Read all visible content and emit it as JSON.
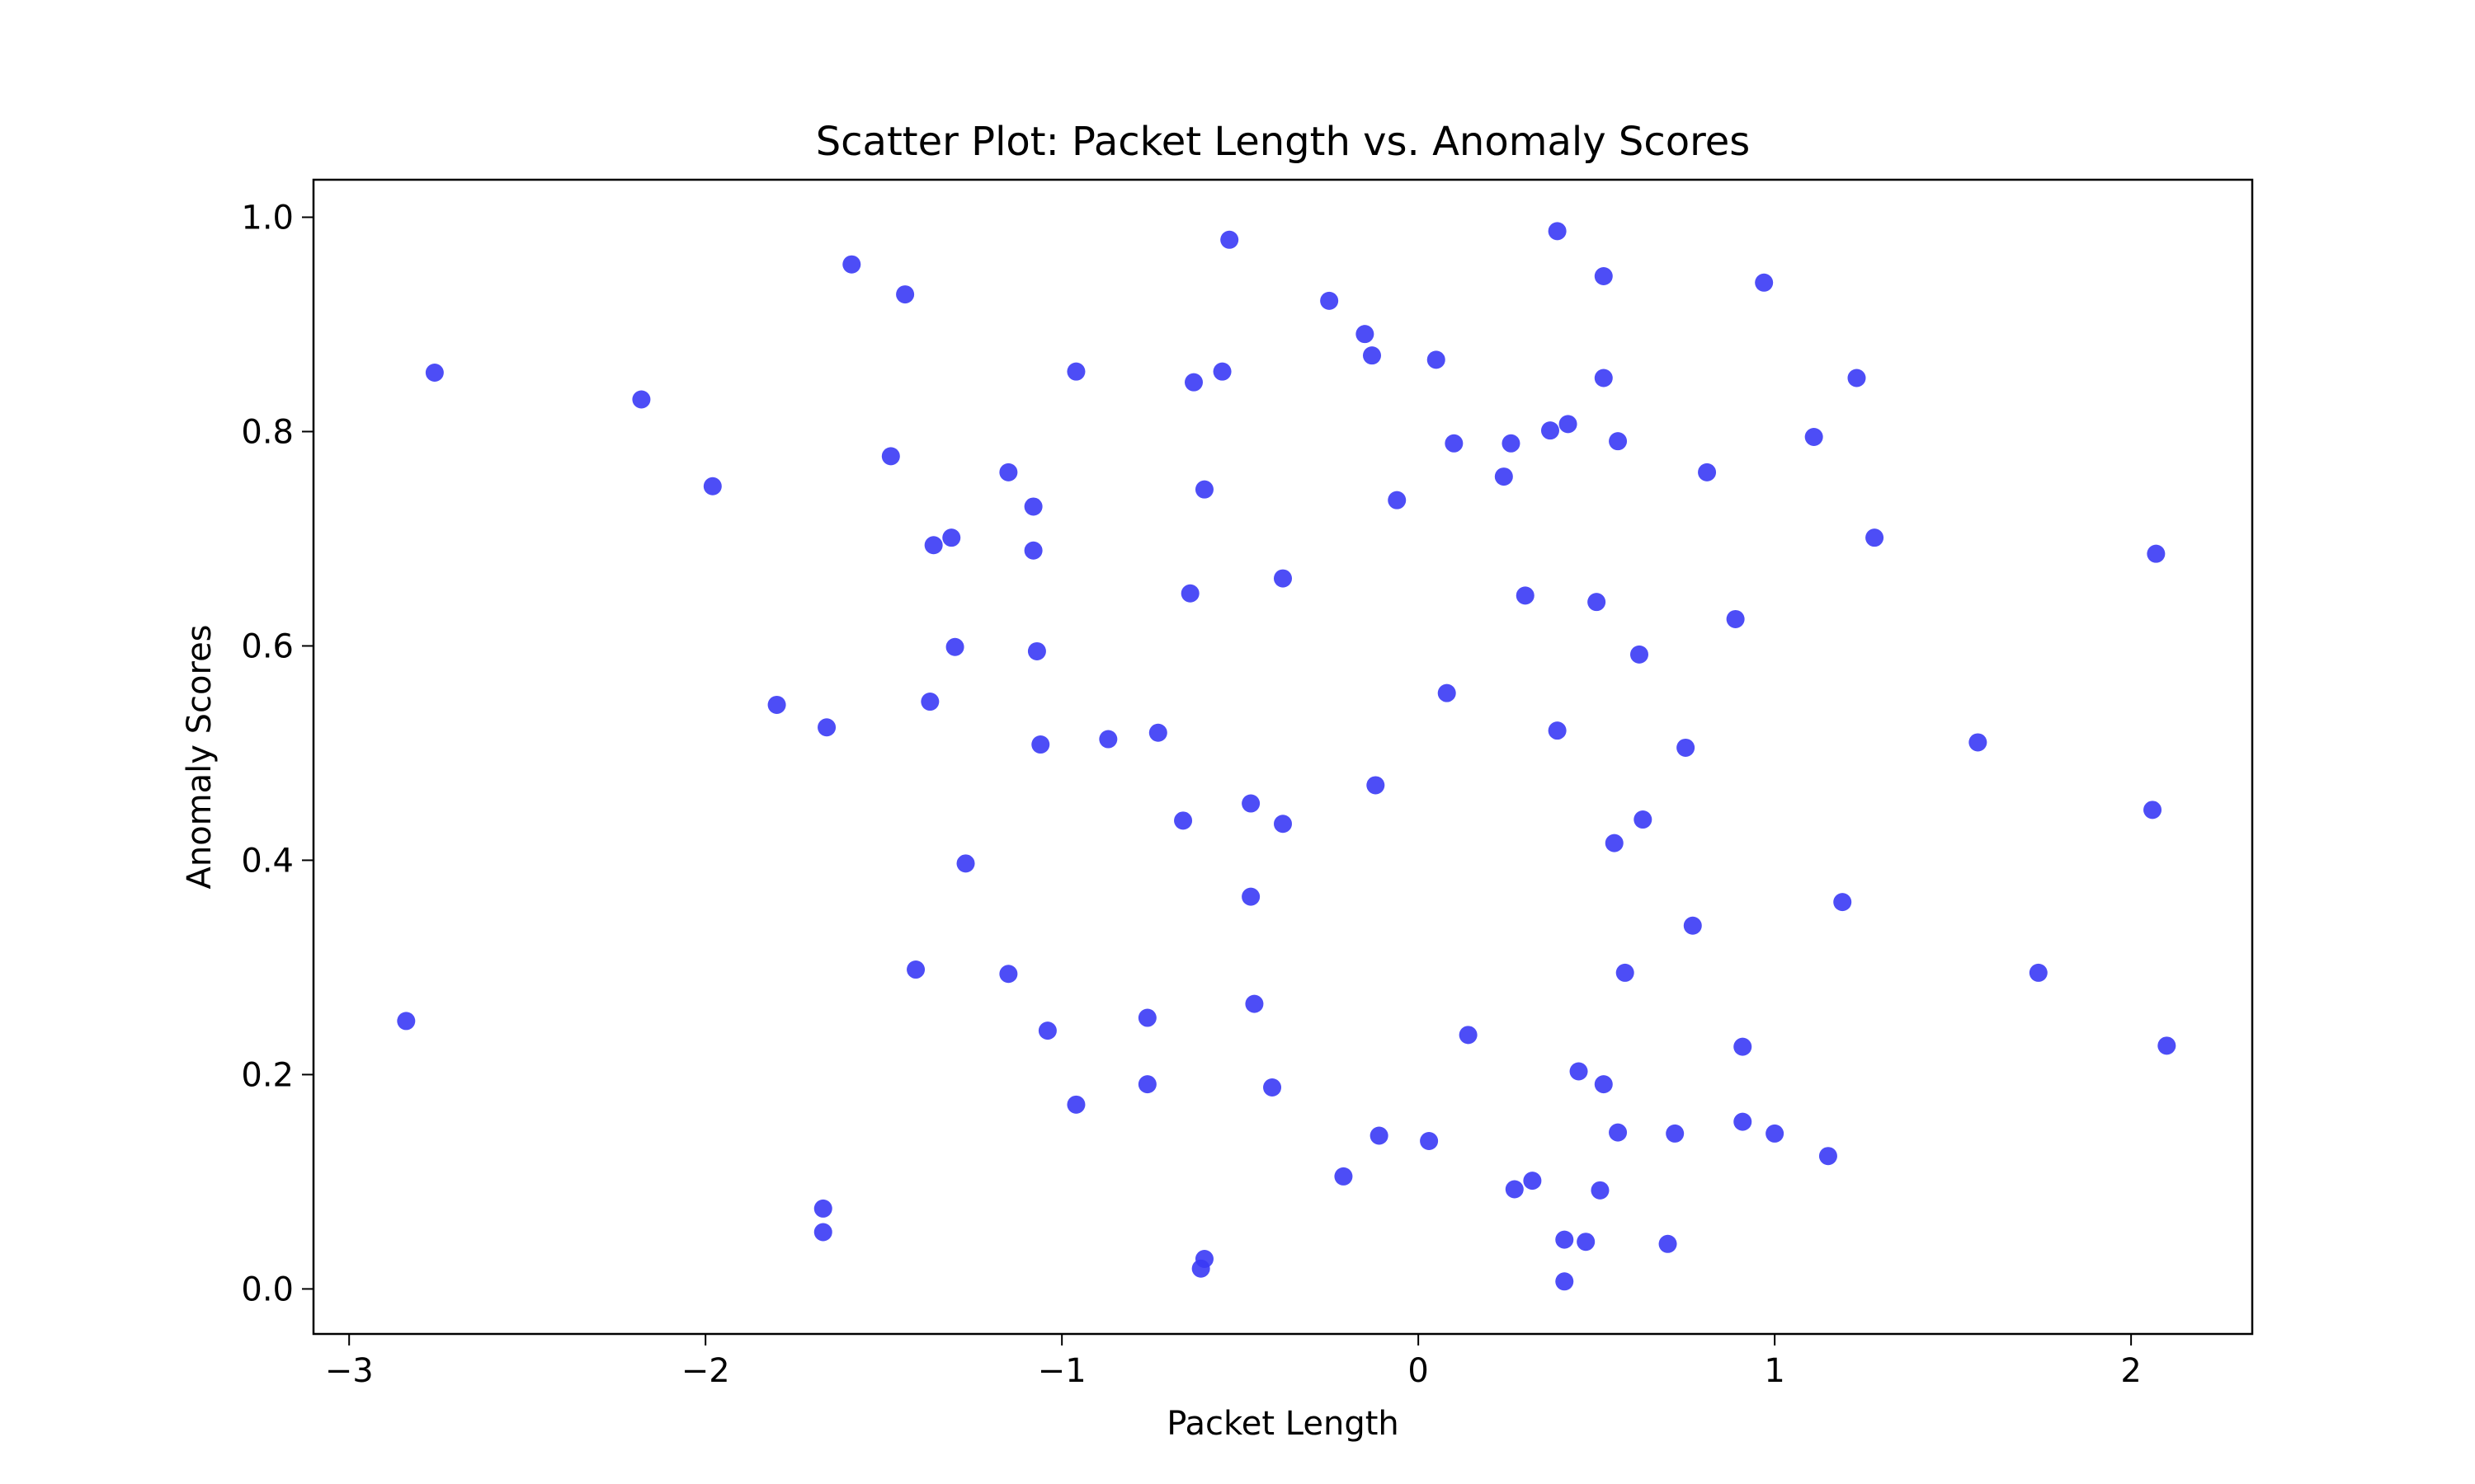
{
  "chart_data": {
    "type": "scatter",
    "title": "Scatter Plot: Packet Length vs. Anomaly Scores",
    "xlabel": "Packet Length",
    "ylabel": "Anomaly Scores",
    "xlim": [
      -3.1,
      2.34
    ],
    "ylim": [
      -0.042,
      1.035
    ],
    "xticks": [
      {
        "value": -3,
        "label": "−3"
      },
      {
        "value": -2,
        "label": "−2"
      },
      {
        "value": -1,
        "label": "−1"
      },
      {
        "value": 0,
        "label": "0"
      },
      {
        "value": 1,
        "label": "1"
      },
      {
        "value": 2,
        "label": "2"
      }
    ],
    "yticks": [
      {
        "value": 0.0,
        "label": "0.0"
      },
      {
        "value": 0.2,
        "label": "0.2"
      },
      {
        "value": 0.4,
        "label": "0.4"
      },
      {
        "value": 0.6,
        "label": "0.6"
      },
      {
        "value": 0.8,
        "label": "0.8"
      },
      {
        "value": 1.0,
        "label": "1.0"
      }
    ],
    "grid": false,
    "marker_color": "#3a3af5",
    "series": [
      {
        "points": [
          {
            "x": -2.76,
            "y": 0.855
          },
          {
            "x": -2.84,
            "y": 0.25
          },
          {
            "x": -2.18,
            "y": 0.83
          },
          {
            "x": -1.98,
            "y": 0.749
          },
          {
            "x": -1.8,
            "y": 0.545
          },
          {
            "x": -1.66,
            "y": 0.524
          },
          {
            "x": -1.67,
            "y": 0.075
          },
          {
            "x": -1.67,
            "y": 0.053
          },
          {
            "x": -1.59,
            "y": 0.956
          },
          {
            "x": -1.44,
            "y": 0.928
          },
          {
            "x": -1.48,
            "y": 0.777
          },
          {
            "x": -1.36,
            "y": 0.694
          },
          {
            "x": -1.31,
            "y": 0.701
          },
          {
            "x": -1.3,
            "y": 0.599
          },
          {
            "x": -1.37,
            "y": 0.548
          },
          {
            "x": -1.41,
            "y": 0.298
          },
          {
            "x": -1.27,
            "y": 0.397
          },
          {
            "x": -1.15,
            "y": 0.762
          },
          {
            "x": -1.08,
            "y": 0.73
          },
          {
            "x": -1.08,
            "y": 0.689
          },
          {
            "x": -1.07,
            "y": 0.595
          },
          {
            "x": -1.06,
            "y": 0.508
          },
          {
            "x": -1.15,
            "y": 0.294
          },
          {
            "x": -1.04,
            "y": 0.241
          },
          {
            "x": -0.96,
            "y": 0.856
          },
          {
            "x": -0.87,
            "y": 0.513
          },
          {
            "x": -0.96,
            "y": 0.172
          },
          {
            "x": -0.63,
            "y": 0.846
          },
          {
            "x": -0.6,
            "y": 0.746
          },
          {
            "x": -0.64,
            "y": 0.649
          },
          {
            "x": -0.73,
            "y": 0.519
          },
          {
            "x": -0.66,
            "y": 0.437
          },
          {
            "x": -0.76,
            "y": 0.253
          },
          {
            "x": -0.76,
            "y": 0.191
          },
          {
            "x": -0.61,
            "y": 0.019
          },
          {
            "x": -0.6,
            "y": 0.028
          },
          {
            "x": -0.53,
            "y": 0.979
          },
          {
            "x": -0.55,
            "y": 0.856
          },
          {
            "x": -0.38,
            "y": 0.663
          },
          {
            "x": -0.47,
            "y": 0.453
          },
          {
            "x": -0.38,
            "y": 0.434
          },
          {
            "x": -0.47,
            "y": 0.366
          },
          {
            "x": -0.46,
            "y": 0.266
          },
          {
            "x": -0.41,
            "y": 0.188
          },
          {
            "x": -0.25,
            "y": 0.922
          },
          {
            "x": -0.15,
            "y": 0.891
          },
          {
            "x": -0.13,
            "y": 0.871
          },
          {
            "x": -0.06,
            "y": 0.736
          },
          {
            "x": -0.12,
            "y": 0.47
          },
          {
            "x": -0.11,
            "y": 0.143
          },
          {
            "x": -0.21,
            "y": 0.105
          },
          {
            "x": 0.05,
            "y": 0.867
          },
          {
            "x": 0.1,
            "y": 0.789
          },
          {
            "x": 0.08,
            "y": 0.556
          },
          {
            "x": 0.03,
            "y": 0.138
          },
          {
            "x": 0.14,
            "y": 0.237
          },
          {
            "x": 0.39,
            "y": 0.987
          },
          {
            "x": 0.26,
            "y": 0.789
          },
          {
            "x": 0.24,
            "y": 0.758
          },
          {
            "x": 0.37,
            "y": 0.801
          },
          {
            "x": 0.42,
            "y": 0.807
          },
          {
            "x": 0.3,
            "y": 0.647
          },
          {
            "x": 0.39,
            "y": 0.521
          },
          {
            "x": 0.27,
            "y": 0.093
          },
          {
            "x": 0.32,
            "y": 0.101
          },
          {
            "x": 0.45,
            "y": 0.203
          },
          {
            "x": 0.41,
            "y": 0.046
          },
          {
            "x": 0.47,
            "y": 0.044
          },
          {
            "x": 0.41,
            "y": 0.007
          },
          {
            "x": 0.52,
            "y": 0.945
          },
          {
            "x": 0.52,
            "y": 0.85
          },
          {
            "x": 0.56,
            "y": 0.791
          },
          {
            "x": 0.5,
            "y": 0.641
          },
          {
            "x": 0.62,
            "y": 0.592
          },
          {
            "x": 0.63,
            "y": 0.438
          },
          {
            "x": 0.55,
            "y": 0.416
          },
          {
            "x": 0.58,
            "y": 0.295
          },
          {
            "x": 0.52,
            "y": 0.191
          },
          {
            "x": 0.56,
            "y": 0.146
          },
          {
            "x": 0.51,
            "y": 0.092
          },
          {
            "x": 0.72,
            "y": 0.145
          },
          {
            "x": 0.7,
            "y": 0.042
          },
          {
            "x": 0.75,
            "y": 0.505
          },
          {
            "x": 0.77,
            "y": 0.339
          },
          {
            "x": 0.81,
            "y": 0.762
          },
          {
            "x": 0.89,
            "y": 0.625
          },
          {
            "x": 0.91,
            "y": 0.226
          },
          {
            "x": 0.91,
            "y": 0.156
          },
          {
            "x": 0.97,
            "y": 0.939
          },
          {
            "x": 1.0,
            "y": 0.145
          },
          {
            "x": 1.11,
            "y": 0.795
          },
          {
            "x": 1.23,
            "y": 0.85
          },
          {
            "x": 1.28,
            "y": 0.701
          },
          {
            "x": 1.19,
            "y": 0.361
          },
          {
            "x": 1.15,
            "y": 0.124
          },
          {
            "x": 1.57,
            "y": 0.51
          },
          {
            "x": 1.74,
            "y": 0.295
          },
          {
            "x": 2.07,
            "y": 0.686
          },
          {
            "x": 2.06,
            "y": 0.447
          },
          {
            "x": 2.1,
            "y": 0.227
          }
        ]
      }
    ]
  }
}
